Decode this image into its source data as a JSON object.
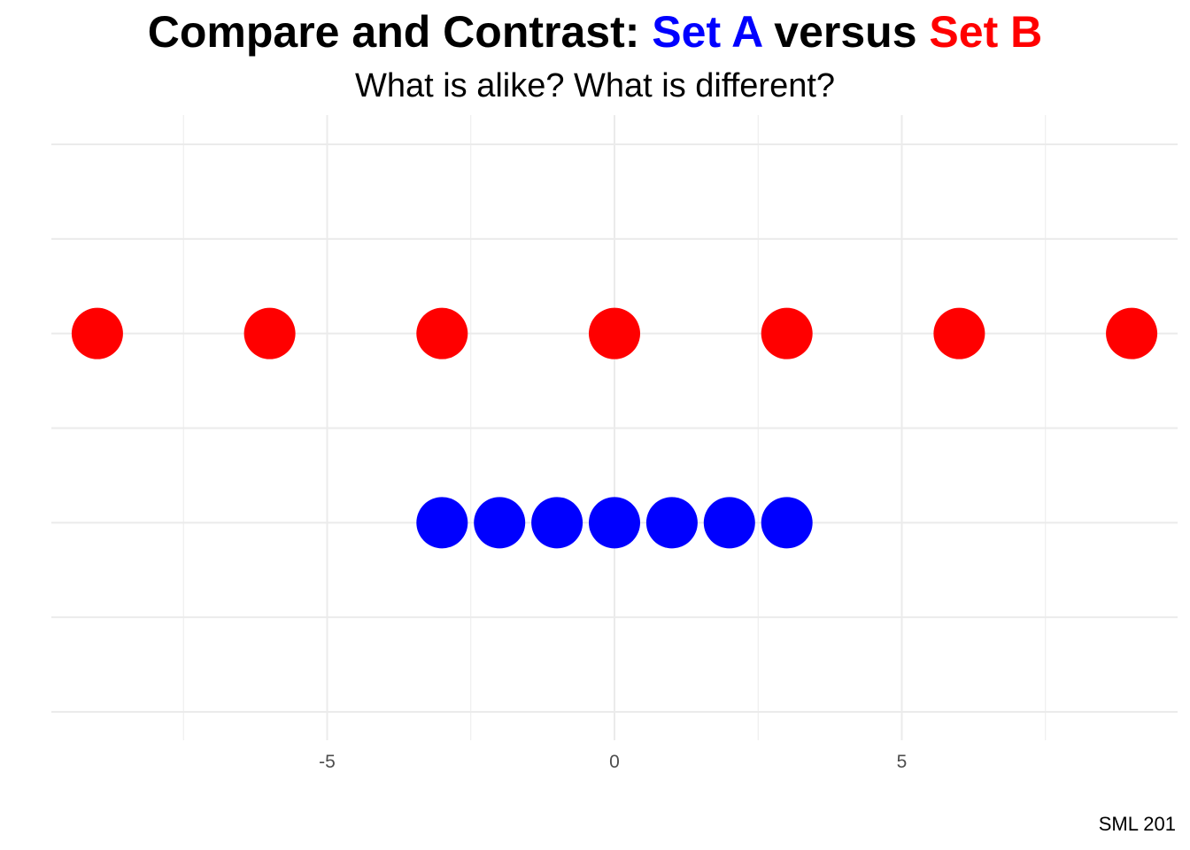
{
  "title": {
    "prefix": "Compare and Contrast: ",
    "set_a": "Set A",
    "middle": " versus ",
    "set_b": "Set B"
  },
  "subtitle": "What is alike? What is different?",
  "caption": "SML 201",
  "colors": {
    "set_a": "#0000ff",
    "set_b": "#ff0000",
    "grid": "#ebebeb",
    "tick_text": "#4d4d4d"
  },
  "chart_data": {
    "type": "scatter",
    "xlabel": "",
    "ylabel": "",
    "xlim": [
      -9.8,
      9.8
    ],
    "ylim": [
      0,
      6
    ],
    "x_ticks": [
      -5,
      0,
      5
    ],
    "x_tick_labels": [
      "-5",
      "0",
      "5"
    ],
    "y_tick_labels_shown": false,
    "grid": true,
    "legend": "none",
    "series": [
      {
        "key": "set_a",
        "y": 2,
        "x": [
          -3,
          -2,
          -1,
          0,
          1,
          2,
          3
        ]
      },
      {
        "key": "set_b",
        "y": 4,
        "x": [
          -9,
          -6,
          -3,
          0,
          3,
          6,
          9
        ]
      }
    ]
  }
}
